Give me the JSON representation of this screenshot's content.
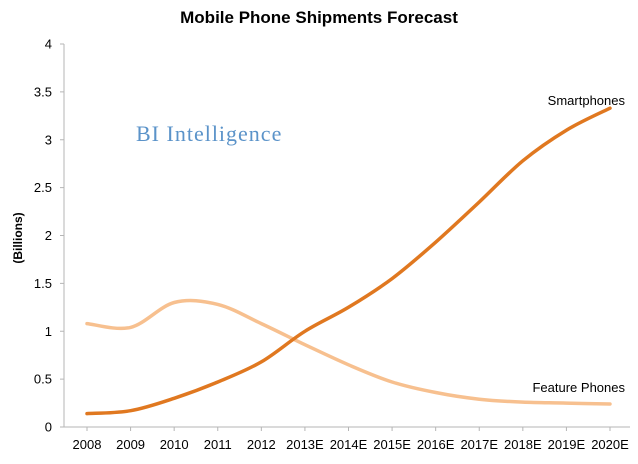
{
  "chart_data": {
    "type": "line",
    "title": "Mobile Phone Shipments Forecast",
    "xlabel": "",
    "ylabel": "(Billions)",
    "ylim": [
      0,
      4
    ],
    "yticks": [
      "0",
      "0.5",
      "1",
      "1.5",
      "2",
      "2.5",
      "3",
      "3.5",
      "4"
    ],
    "categories": [
      "2008",
      "2009",
      "2010",
      "2011",
      "2012",
      "2013E",
      "2014E",
      "2015E",
      "2016E",
      "2017E",
      "2018E",
      "2019E",
      "2020E"
    ],
    "series": [
      {
        "name": "Smartphones",
        "color": "#E07820",
        "values": [
          0.14,
          0.17,
          0.3,
          0.47,
          0.68,
          1.0,
          1.25,
          1.55,
          1.93,
          2.35,
          2.78,
          3.1,
          3.33
        ]
      },
      {
        "name": "Feature Phones",
        "color": "#F7C08F",
        "values": [
          1.08,
          1.04,
          1.3,
          1.28,
          1.08,
          0.86,
          0.65,
          0.47,
          0.36,
          0.29,
          0.26,
          0.25,
          0.24
        ]
      }
    ],
    "grid": false
  },
  "watermark": {
    "text": "BI Intelligence",
    "color": "#5B93C9"
  }
}
